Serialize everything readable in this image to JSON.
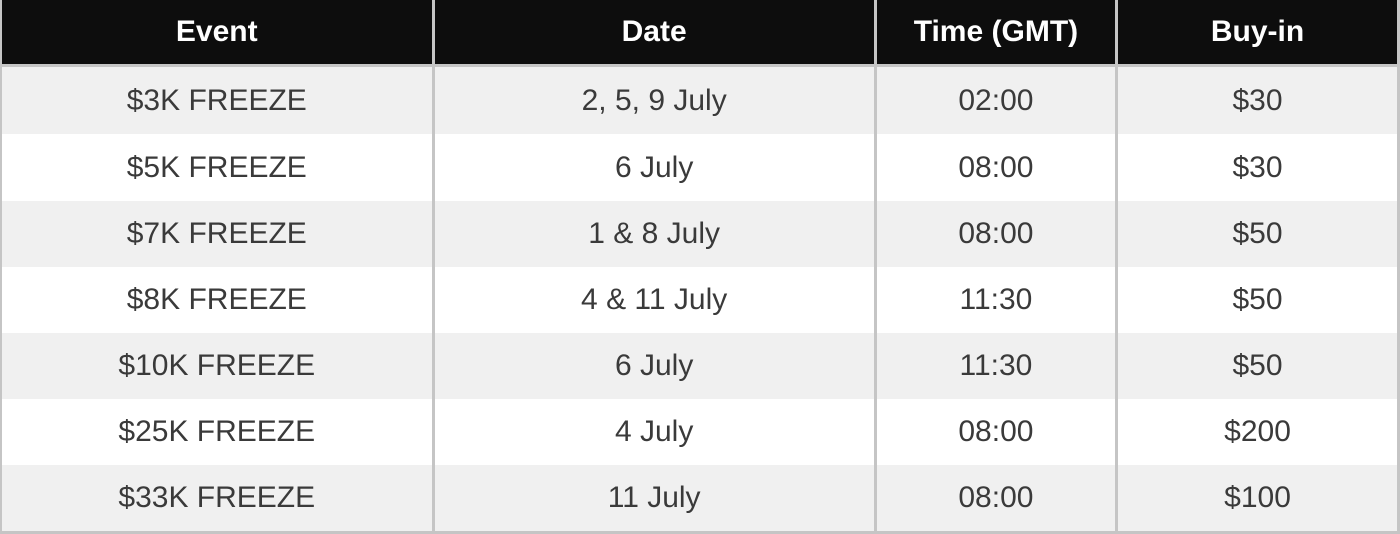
{
  "chart_data": {
    "type": "table",
    "columns": [
      "Event",
      "Date",
      "Time (GMT)",
      "Buy-in"
    ],
    "rows": [
      [
        "$3K FREEZE",
        "2, 5, 9 July",
        "02:00",
        "$30"
      ],
      [
        "$5K FREEZE",
        "6 July",
        "08:00",
        "$30"
      ],
      [
        "$7K FREEZE",
        "1 & 8 July",
        "08:00",
        "$50"
      ],
      [
        "$8K FREEZE",
        "4 & 11 July",
        "11:30",
        "$50"
      ],
      [
        "$10K FREEZE",
        "6 July",
        "11:30",
        "$50"
      ],
      [
        "$25K FREEZE",
        "4 July",
        "08:00",
        "$200"
      ],
      [
        "$33K FREEZE",
        "11 July",
        "08:00",
        "$100"
      ]
    ]
  },
  "colors": {
    "header_bg": "#0d0d0d",
    "header_text": "#ffffff",
    "row_stripe": "#f0f0f0",
    "row_white": "#ffffff",
    "border": "#c5c5c5",
    "cell_text": "#3a3a3a"
  }
}
